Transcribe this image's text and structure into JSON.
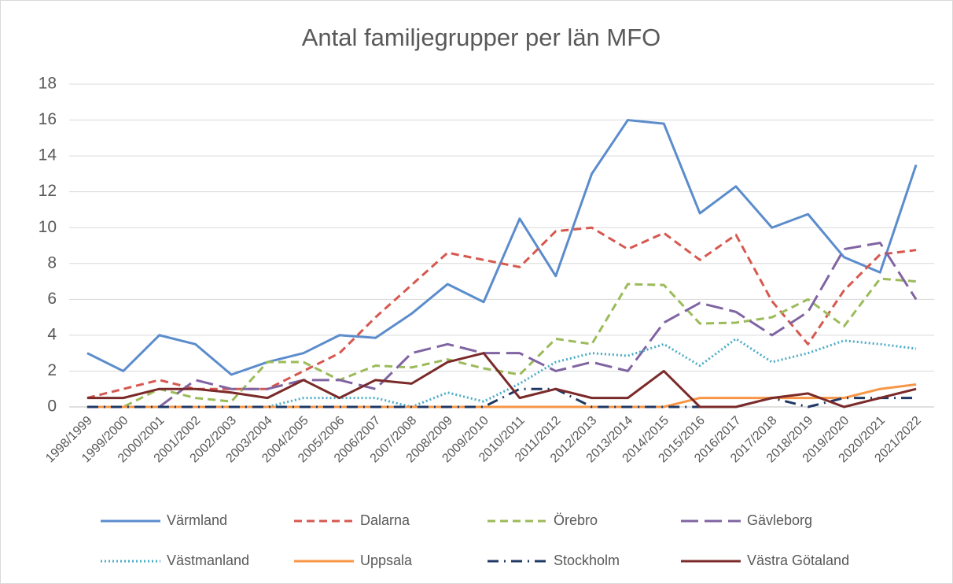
{
  "chart_data": {
    "type": "line",
    "title": "Antal familjegrupper per län MFO",
    "categories": [
      "1998/1999",
      "1999/2000",
      "2000/2001",
      "2001/2002",
      "2002/2003",
      "2003/2004",
      "2004/2005",
      "2005/2006",
      "2006/2007",
      "2007/2008",
      "2008/2009",
      "2009/2010",
      "2010/2011",
      "2011/2012",
      "2012/2013",
      "2013/2014",
      "2014/2015",
      "2015/2016",
      "2016/2017",
      "2017/2018",
      "2018/2019",
      "2019/2020",
      "2020/2021",
      "2021/2022"
    ],
    "ylim": [
      0,
      18
    ],
    "yticks": [
      0,
      2,
      4,
      6,
      8,
      10,
      12,
      14,
      16,
      18
    ],
    "grid": true,
    "legend": "bottom",
    "series": [
      {
        "name": "Värmland",
        "color": "#5b8ccc",
        "dash": "solid",
        "values": [
          3,
          2,
          4,
          3.5,
          1.8,
          2.5,
          3,
          4,
          3.85,
          5.2,
          6.85,
          5.85,
          10.5,
          7.3,
          13,
          16,
          15.8,
          10.8,
          12.3,
          10,
          10.75,
          8.35,
          7.5,
          13.5
        ]
      },
      {
        "name": "Dalarna",
        "color": "#d6584f",
        "dash": "dashed",
        "values": [
          0.5,
          1,
          1.5,
          1,
          1,
          1,
          2,
          3,
          5,
          6.8,
          8.6,
          8.2,
          7.8,
          9.8,
          10,
          8.8,
          9.7,
          8.2,
          9.6,
          5.9,
          3.5,
          6.5,
          8.5,
          8.75
        ]
      },
      {
        "name": "Örebro",
        "color": "#9bbb59",
        "dash": "dashed",
        "values": [
          0,
          0,
          1,
          0.5,
          0.3,
          2.5,
          2.5,
          1.5,
          2.3,
          2.2,
          2.65,
          2.15,
          1.8,
          3.8,
          3.5,
          6.85,
          6.8,
          4.65,
          4.7,
          5,
          6,
          4.5,
          7.15,
          7
        ]
      },
      {
        "name": "Gävleborg",
        "color": "#8064a2",
        "dash": "long-dash",
        "values": [
          0,
          0,
          0,
          1.5,
          1,
          1,
          1.5,
          1.5,
          1,
          3,
          3.5,
          3,
          3,
          2,
          2.5,
          2,
          4.7,
          5.8,
          5.3,
          4,
          5.3,
          8.8,
          9.15,
          6
        ]
      },
      {
        "name": "Västmanland",
        "color": "#4bacc6",
        "dash": "dotted",
        "values": [
          0,
          0,
          0,
          0,
          0,
          0,
          0.5,
          0.5,
          0.5,
          0,
          0.8,
          0.3,
          1.3,
          2.5,
          3,
          2.85,
          3.5,
          2.3,
          3.8,
          2.5,
          3,
          3.7,
          3.5,
          3.25
        ]
      },
      {
        "name": "Uppsala",
        "color": "#f79646",
        "dash": "solid",
        "values": [
          0,
          0,
          0,
          0,
          0,
          0,
          0,
          0,
          0,
          0,
          0,
          0,
          0,
          0,
          0,
          0,
          0,
          0.5,
          0.5,
          0.5,
          0.5,
          0.5,
          1,
          1.25
        ]
      },
      {
        "name": "Stockholm",
        "color": "#1f3864",
        "dash": "dash-dot",
        "values": [
          0,
          0,
          0,
          0,
          0,
          0,
          0,
          0,
          0,
          0,
          0,
          0,
          1,
          1,
          0,
          0,
          0,
          0,
          0,
          0.5,
          0,
          0.5,
          0.5,
          0.5
        ]
      },
      {
        "name": "Västra Götaland",
        "color": "#7b2a2a",
        "dash": "solid",
        "values": [
          0.5,
          0.5,
          1,
          1,
          0.8,
          0.5,
          1.5,
          0.5,
          1.5,
          1.3,
          2.5,
          3,
          0.5,
          1,
          0.5,
          0.5,
          2,
          0,
          0,
          0.5,
          0.75,
          0,
          0.5,
          1
        ]
      }
    ]
  }
}
